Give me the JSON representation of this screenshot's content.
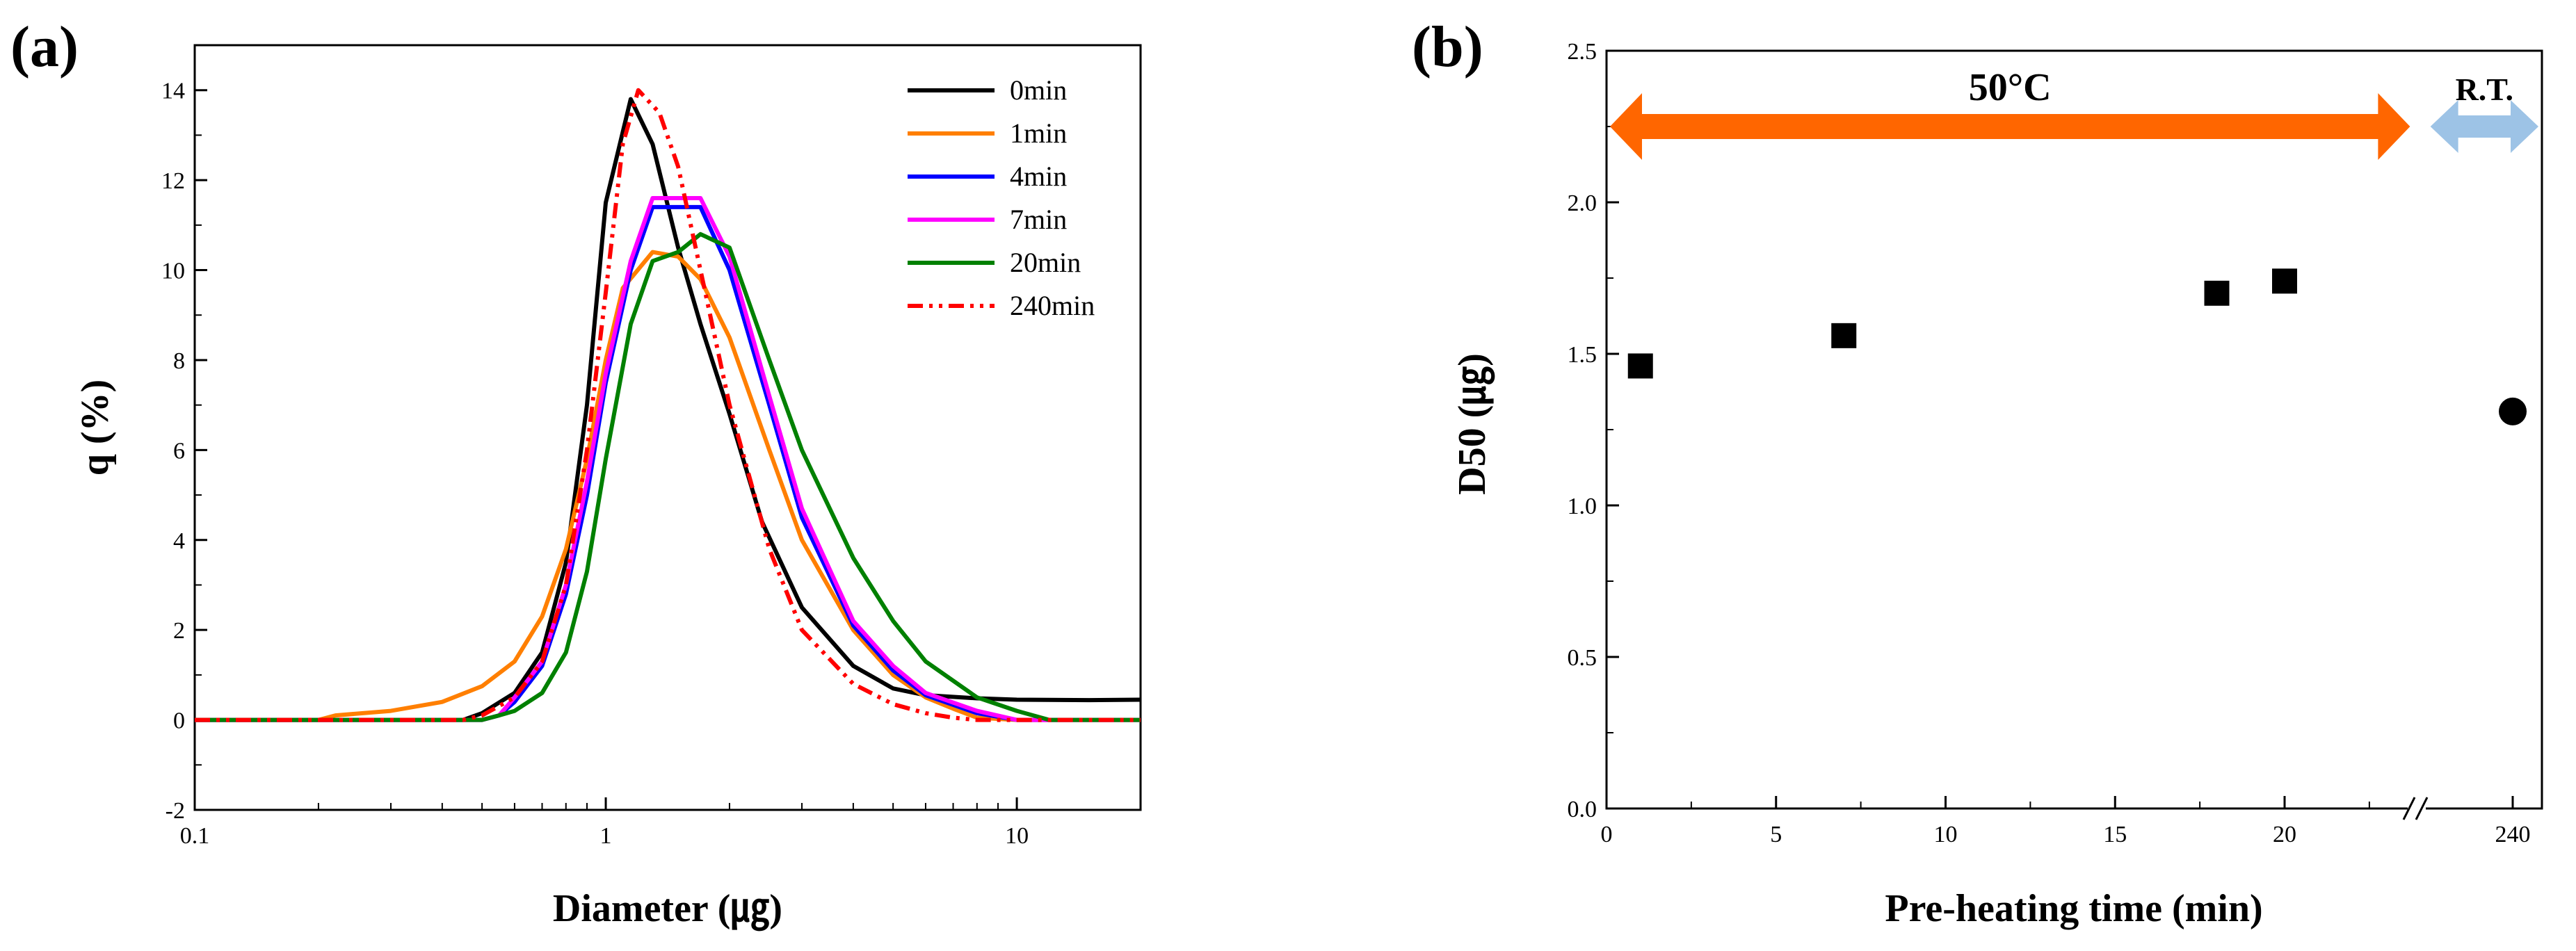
{
  "chart_data": [
    {
      "type": "line",
      "panel_label": "(a)",
      "xscale": "log",
      "xlim": [
        0.1,
        20
      ],
      "ylim": [
        -2,
        15
      ],
      "xlabel": "Diameter (㎍)",
      "ylabel": "q (%)",
      "xticks": [
        0.1,
        1,
        10
      ],
      "xtick_labels": [
        "0.1",
        "1",
        "10"
      ],
      "yticks": [
        -2,
        0,
        2,
        4,
        6,
        8,
        10,
        12,
        14
      ],
      "ytick_labels": [
        "-2",
        "0",
        "2",
        "4",
        "6",
        "8",
        "10",
        "12",
        "14"
      ],
      "legend_position": "top-right",
      "series": [
        {
          "name": "0min",
          "color": "#000000",
          "dash": "solid",
          "x": [
            0.1,
            0.45,
            0.5,
            0.6,
            0.7,
            0.8,
            0.9,
            1.0,
            1.15,
            1.3,
            1.5,
            1.7,
            2.0,
            2.4,
            3.0,
            4.0,
            5.0,
            6.0,
            8.0,
            10.0,
            15.0,
            20.0
          ],
          "y": [
            0,
            0,
            0.15,
            0.6,
            1.5,
            3.5,
            7.0,
            11.5,
            13.8,
            12.8,
            10.5,
            8.8,
            6.8,
            4.4,
            2.5,
            1.2,
            0.7,
            0.55,
            0.48,
            0.45,
            0.44,
            0.45
          ]
        },
        {
          "name": "1min",
          "color": "#FF7F00",
          "dash": "solid",
          "x": [
            0.1,
            0.2,
            0.22,
            0.3,
            0.4,
            0.5,
            0.6,
            0.7,
            0.8,
            0.9,
            1.0,
            1.1,
            1.3,
            1.5,
            1.7,
            2.0,
            2.5,
            3.0,
            4.0,
            5.0,
            6.0,
            7.0,
            8.0,
            10.0,
            20.0
          ],
          "y": [
            0,
            0,
            0.1,
            0.2,
            0.4,
            0.75,
            1.3,
            2.3,
            3.8,
            5.8,
            8.0,
            9.6,
            10.4,
            10.3,
            9.8,
            8.5,
            6.0,
            4.0,
            2.0,
            1.0,
            0.5,
            0.25,
            0.05,
            0,
            0
          ]
        },
        {
          "name": "4min",
          "color": "#0000FF",
          "dash": "solid",
          "x": [
            0.1,
            0.5,
            0.55,
            0.6,
            0.7,
            0.8,
            0.9,
            1.0,
            1.15,
            1.3,
            1.5,
            1.7,
            2.0,
            2.5,
            3.0,
            4.0,
            5.0,
            6.0,
            8.0,
            10.0,
            20.0
          ],
          "y": [
            0,
            0,
            0.1,
            0.4,
            1.2,
            2.8,
            5.0,
            7.5,
            10.0,
            11.4,
            11.4,
            11.4,
            10.0,
            7.0,
            4.5,
            2.1,
            1.1,
            0.55,
            0.15,
            0,
            0
          ]
        },
        {
          "name": "7min",
          "color": "#FF00FF",
          "dash": "solid",
          "x": [
            0.1,
            0.5,
            0.55,
            0.6,
            0.7,
            0.8,
            0.9,
            1.0,
            1.15,
            1.3,
            1.5,
            1.7,
            2.0,
            2.5,
            3.0,
            4.0,
            5.0,
            6.0,
            8.0,
            10.0,
            20.0
          ],
          "y": [
            0,
            0,
            0.1,
            0.5,
            1.3,
            3.0,
            5.3,
            7.7,
            10.2,
            11.6,
            11.6,
            11.6,
            10.3,
            7.2,
            4.7,
            2.2,
            1.2,
            0.6,
            0.2,
            0,
            0
          ]
        },
        {
          "name": "20min",
          "color": "#008000",
          "dash": "solid",
          "x": [
            0.1,
            0.5,
            0.55,
            0.6,
            0.7,
            0.8,
            0.9,
            1.0,
            1.15,
            1.3,
            1.5,
            1.7,
            2.0,
            2.5,
            3.0,
            4.0,
            5.0,
            6.0,
            8.0,
            10.0,
            12.0,
            20.0
          ],
          "y": [
            0,
            0,
            0.1,
            0.2,
            0.6,
            1.5,
            3.3,
            5.8,
            8.8,
            10.2,
            10.4,
            10.8,
            10.5,
            8.0,
            6.0,
            3.6,
            2.2,
            1.3,
            0.5,
            0.2,
            0,
            0
          ]
        },
        {
          "name": "240min",
          "color": "#FF0000",
          "dash": "dashdot",
          "x": [
            0.1,
            0.45,
            0.5,
            0.6,
            0.7,
            0.8,
            0.9,
            1.0,
            1.1,
            1.2,
            1.35,
            1.5,
            1.7,
            2.0,
            2.5,
            3.0,
            4.0,
            5.0,
            6.0,
            7.0,
            8.0,
            10.0,
            20.0
          ],
          "y": [
            0,
            0,
            0.1,
            0.5,
            1.3,
            3.0,
            6.0,
            9.5,
            12.8,
            14.0,
            13.5,
            12.3,
            10.0,
            7.0,
            3.8,
            2.0,
            0.8,
            0.35,
            0.15,
            0.05,
            0,
            0,
            0
          ]
        }
      ]
    },
    {
      "type": "scatter",
      "panel_label": "(b)",
      "xlabel": "Pre-heating time (min)",
      "ylabel": "D50 (㎍)",
      "ylim": [
        0.0,
        2.5
      ],
      "xlim": [
        0,
        27
      ],
      "axis_break": "between 20 and 240",
      "xticks": [
        0,
        5,
        10,
        15,
        20,
        240
      ],
      "xtick_labels": [
        "0",
        "5",
        "10",
        "15",
        "20",
        "240"
      ],
      "yticks": [
        0.0,
        0.5,
        1.0,
        1.5,
        2.0,
        2.5
      ],
      "ytick_labels": [
        "0.0",
        "0.5",
        "1.0",
        "1.5",
        "2.0",
        "2.5"
      ],
      "series": [
        {
          "name": "50°C",
          "marker": "square",
          "color": "#000000",
          "x": [
            1,
            7,
            18,
            20
          ],
          "y": [
            1.46,
            1.56,
            1.7,
            1.74
          ]
        },
        {
          "name": "R.T.",
          "marker": "circle",
          "color": "#000000",
          "x": [
            240
          ],
          "y": [
            1.31
          ]
        }
      ],
      "annotations": [
        {
          "text": "50°C",
          "color": "#FF6600",
          "span_x": [
            0,
            23.7
          ],
          "y": 2.25
        },
        {
          "text": "R.T.",
          "color": "#9DC3E6",
          "span_x": [
            24.3,
            240
          ],
          "y": 2.25
        }
      ]
    }
  ]
}
